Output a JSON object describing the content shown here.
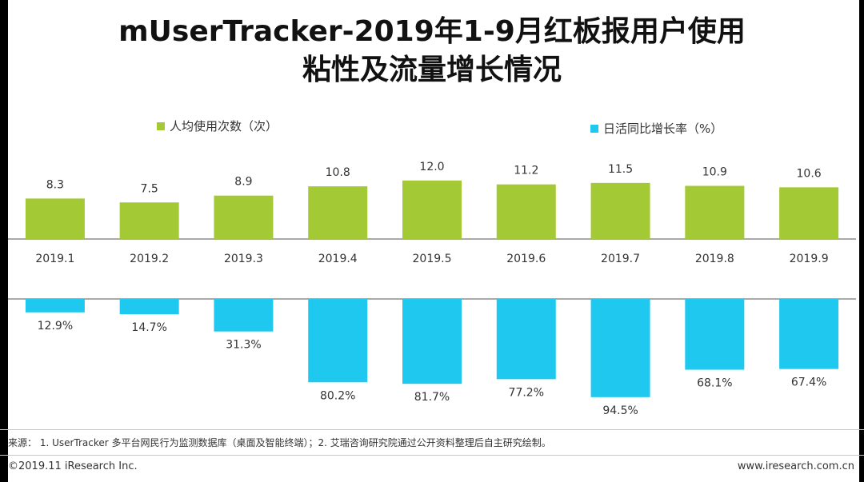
{
  "title": {
    "line1": "mUserTracker-2019年1-9月红板报用户使用",
    "line2": "粘性及流量增长情况"
  },
  "legend": {
    "series1": "人均使用次数（次）",
    "series2": "日活同比增长率（%）"
  },
  "colors": {
    "series1": "#a3c934",
    "series2": "#1ec8ee",
    "axis": "#555555"
  },
  "chart_data": {
    "type": "bar",
    "categories": [
      "2019.1",
      "2019.2",
      "2019.3",
      "2019.4",
      "2019.5",
      "2019.6",
      "2019.7",
      "2019.8",
      "2019.9"
    ],
    "series": [
      {
        "name": "人均使用次数（次）",
        "values": [
          8.3,
          7.5,
          8.9,
          10.8,
          12.0,
          11.2,
          11.5,
          10.9,
          10.6
        ],
        "labels": [
          "8.3",
          "7.5",
          "8.9",
          "10.8",
          "12.0",
          "11.2",
          "11.5",
          "10.9",
          "10.6"
        ],
        "direction": "up"
      },
      {
        "name": "日活同比增长率（%）",
        "values": [
          12.9,
          14.7,
          31.3,
          80.2,
          81.7,
          77.2,
          94.5,
          68.1,
          67.4
        ],
        "labels": [
          "12.9%",
          "14.7%",
          "31.3%",
          "80.2%",
          "81.7%",
          "77.2%",
          "94.5%",
          "68.1%",
          "67.4%"
        ],
        "direction": "down"
      }
    ],
    "title": "mUserTracker-2019年1-9月红板报用户使用粘性及流量增长情况",
    "xlabel": "",
    "ylabel": ""
  },
  "footer": {
    "source": "来源： 1. UserTracker 多平台网民行为监测数据库（桌面及智能终端）；2. 艾瑞咨询研究院通过公开资料整理后自主研究绘制。",
    "copyright": "©2019.11 iResearch Inc.",
    "website": "www.iresearch.com.cn"
  }
}
